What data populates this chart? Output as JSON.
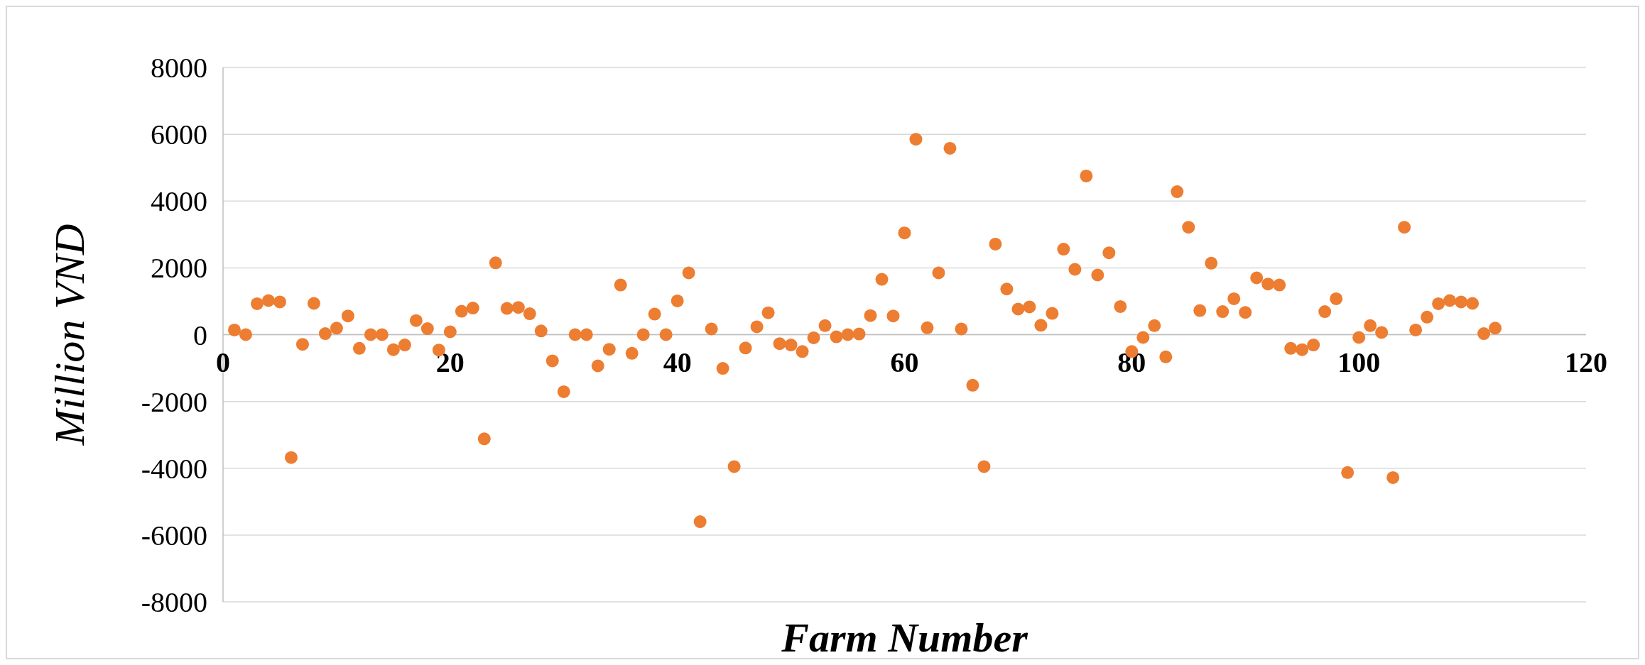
{
  "chart_data": {
    "type": "scatter",
    "xlabel": "Farm Number",
    "ylabel": "Million VND",
    "x": [
      1,
      2,
      3,
      4,
      5,
      6,
      7,
      8,
      9,
      10,
      11,
      12,
      13,
      14,
      15,
      16,
      17,
      18,
      19,
      20,
      21,
      22,
      23,
      24,
      25,
      26,
      27,
      28,
      29,
      30,
      31,
      32,
      33,
      34,
      35,
      36,
      37,
      38,
      39,
      40,
      41,
      42,
      43,
      44,
      45,
      46,
      47,
      48,
      49,
      50,
      51,
      52,
      53,
      54,
      55,
      56,
      57,
      58,
      59,
      60,
      61,
      62,
      63,
      64,
      65,
      66,
      67,
      68,
      69,
      70,
      71,
      72,
      73,
      74,
      75,
      76,
      77,
      78,
      79,
      80,
      81,
      82,
      83,
      84,
      85,
      86,
      87,
      88,
      89,
      90,
      91,
      92,
      93,
      94,
      95,
      96,
      97,
      98,
      99,
      100,
      101,
      102,
      103,
      104,
      105,
      106,
      107,
      108,
      109,
      110,
      111,
      112
    ],
    "series": [
      {
        "color": "#ed7d31",
        "values": [
          140,
          0,
          925,
          1020,
          980,
          -3680,
          -290,
          935,
          30,
          195,
          560,
          -410,
          0,
          0,
          -450,
          -310,
          420,
          180,
          -460,
          85,
          700,
          795,
          -3120,
          2150,
          785,
          815,
          625,
          110,
          -785,
          -1710,
          0,
          0,
          -935,
          -440,
          1485,
          -560,
          0,
          615,
          0,
          1010,
          1850,
          -5600,
          170,
          -1010,
          -3950,
          -400,
          235,
          655,
          -270,
          -310,
          -505,
          -95,
          270,
          -65,
          0,
          20,
          570,
          1655,
          560,
          3045,
          5850,
          205,
          1850,
          5580,
          170,
          -1515,
          -3950,
          2710,
          1365,
          765,
          830,
          280,
          635,
          2560,
          1955,
          4750,
          1785,
          2450,
          840,
          -505,
          -85,
          270,
          -665,
          4280,
          3215,
          720,
          2140,
          690,
          1075,
          665,
          1700,
          1515,
          1485,
          -410,
          -450,
          -310,
          690,
          1075,
          -4130,
          -85,
          270,
          65,
          -4280,
          3215,
          140,
          525,
          925,
          1020,
          980,
          935,
          30,
          195
        ]
      }
    ],
    "xlim": [
      0,
      120
    ],
    "xticks": [
      0,
      20,
      40,
      60,
      80,
      100,
      120
    ],
    "ylim": [
      -8000,
      8000
    ],
    "yticks": [
      -8000,
      -6000,
      -4000,
      -2000,
      0,
      2000,
      4000,
      6000,
      8000
    ],
    "grid": "y",
    "marker": "circle"
  }
}
